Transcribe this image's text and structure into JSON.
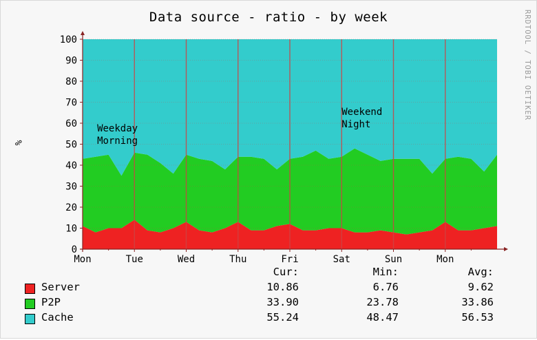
{
  "chart_data": {
    "type": "area",
    "stacked": true,
    "title": "Data source - ratio - by week",
    "ylabel": "%",
    "ylim": [
      0,
      100
    ],
    "y_ticks": [
      0,
      10,
      20,
      30,
      40,
      50,
      60,
      70,
      80,
      90,
      100
    ],
    "x_ticks": [
      "Mon",
      "Tue",
      "Wed",
      "Thu",
      "Fri",
      "Sat",
      "Sun",
      "Mon"
    ],
    "x_tick_positions": [
      0,
      1,
      2,
      3,
      4,
      5,
      6,
      7
    ],
    "x_range": [
      0,
      8
    ],
    "grid": true,
    "x": [
      0,
      0.25,
      0.5,
      0.75,
      1,
      1.25,
      1.5,
      1.75,
      2,
      2.25,
      2.5,
      2.75,
      3,
      3.25,
      3.5,
      3.75,
      4,
      4.25,
      4.5,
      4.75,
      5,
      5.25,
      5.5,
      5.75,
      6,
      6.25,
      6.5,
      6.75,
      7,
      7.25,
      7.5,
      7.75,
      8
    ],
    "series": [
      {
        "name": "Server",
        "color": "#ee2222",
        "values": [
          11,
          8,
          10,
          10,
          14,
          9,
          8,
          10,
          13,
          9,
          8,
          10,
          13,
          9,
          9,
          11,
          12,
          9,
          9,
          10,
          10,
          8,
          8,
          9,
          8,
          7,
          8,
          9,
          13,
          9,
          9,
          10,
          11
        ]
      },
      {
        "name": "P2P",
        "color": "#22cc22",
        "values": [
          32,
          36,
          35,
          25,
          32,
          36,
          33,
          26,
          32,
          34,
          34,
          28,
          31,
          35,
          34,
          27,
          31,
          35,
          38,
          33,
          34,
          40,
          37,
          33,
          35,
          36,
          35,
          27,
          30,
          35,
          34,
          27,
          34
        ]
      },
      {
        "name": "Cache",
        "color": "#33cccc",
        "values": [
          57,
          56,
          55,
          65,
          54,
          55,
          59,
          64,
          55,
          57,
          58,
          62,
          56,
          56,
          57,
          62,
          57,
          56,
          53,
          57,
          56,
          52,
          55,
          58,
          57,
          57,
          57,
          64,
          57,
          56,
          57,
          63,
          55
        ]
      }
    ],
    "annotations": [
      {
        "text": [
          "Weekday",
          "Morning"
        ],
        "x": 0.28,
        "y": 56
      },
      {
        "text": [
          "Weekend",
          "Night"
        ],
        "x": 5.0,
        "y": 64
      }
    ],
    "legend": {
      "headers": {
        "cur": "Cur:",
        "min": "Min:",
        "avg": "Avg:"
      },
      "rows": [
        {
          "name": "Server",
          "color": "#ee2222",
          "cur": "10.86",
          "min": "6.76",
          "avg": "9.62"
        },
        {
          "name": "P2P",
          "color": "#22cc22",
          "cur": "33.90",
          "min": "23.78",
          "avg": "33.86"
        },
        {
          "name": "Cache",
          "color": "#33cccc",
          "cur": "55.24",
          "min": "48.47",
          "avg": "56.53"
        }
      ]
    }
  },
  "side_credit": "RRDTOOL / TOBI OETIKER",
  "colors": {
    "grid": "#cc4444",
    "axis": "#882222",
    "frame_bg": "#f7f7f7"
  }
}
